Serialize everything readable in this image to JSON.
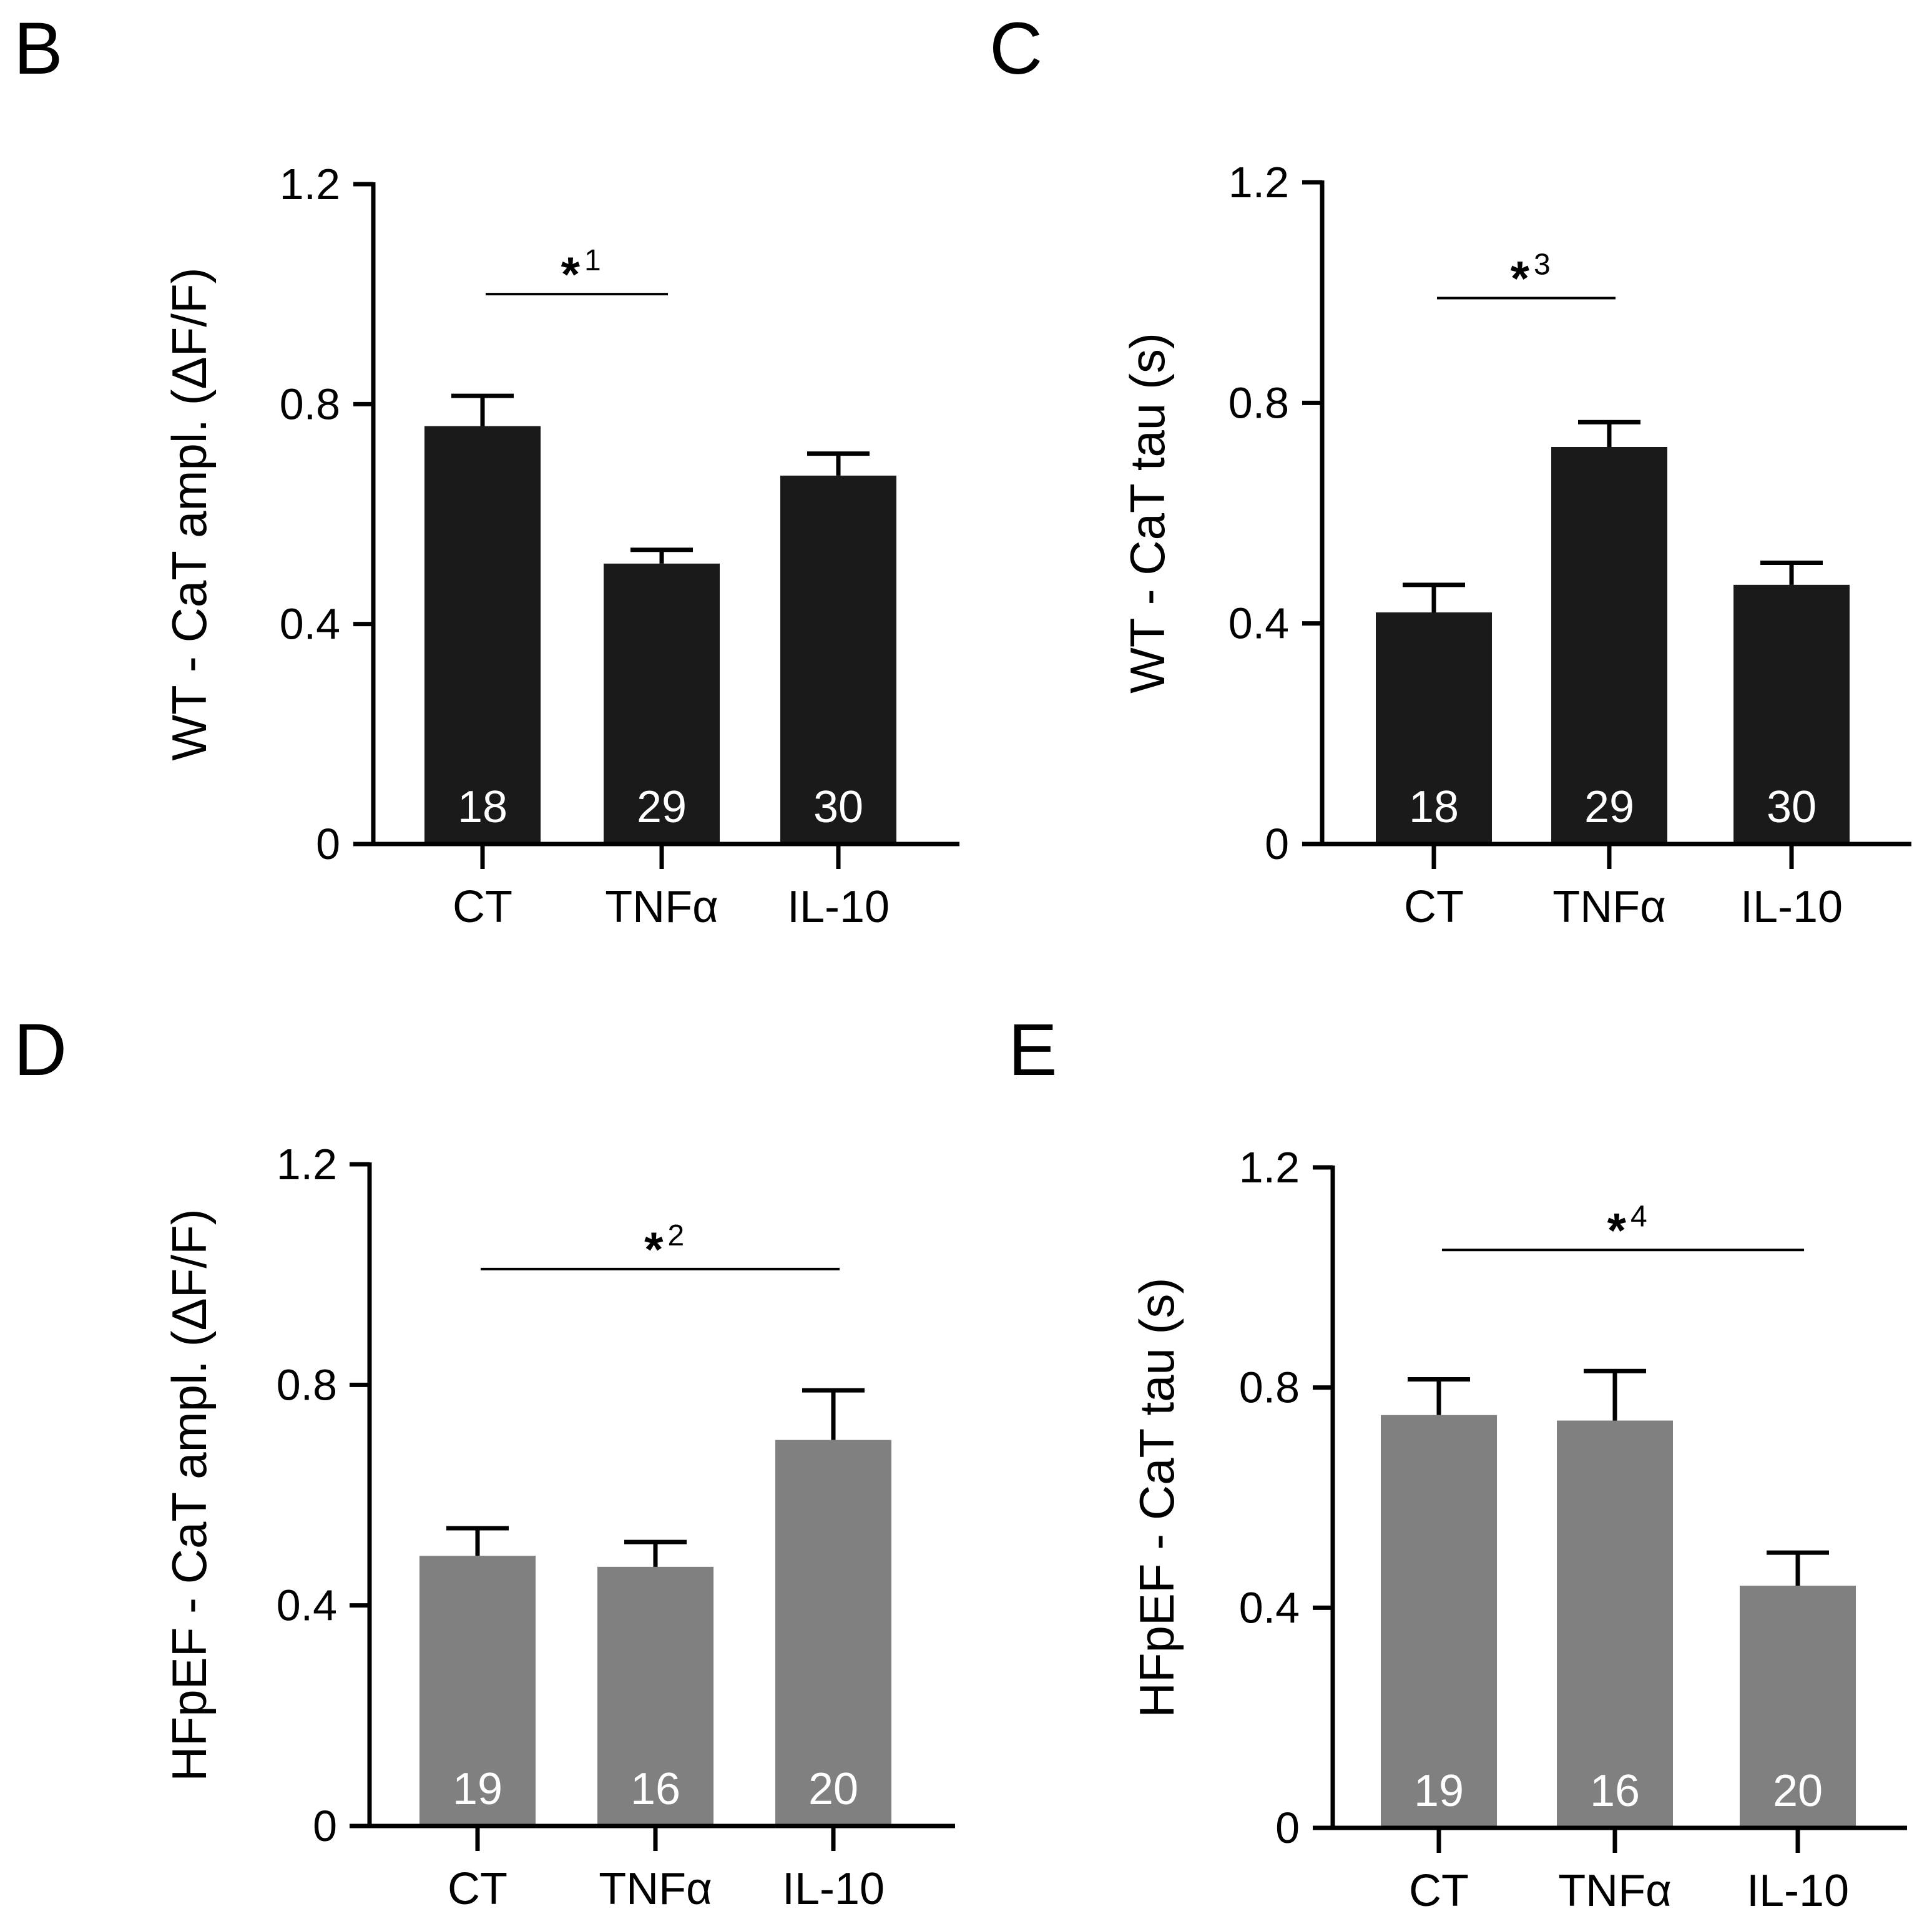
{
  "chart_data": [
    {
      "panel": "B",
      "type": "bar",
      "title": "",
      "ylabel": "WT - CaT ampl. (ΔF/F)",
      "xlabel": "",
      "categories": [
        "CT",
        "TNFα",
        "IL-10"
      ],
      "values": [
        0.76,
        0.51,
        0.67
      ],
      "errors": [
        0.055,
        0.025,
        0.04
      ],
      "n_labels": [
        "18",
        "29",
        "30"
      ],
      "ylim": [
        0,
        1.2
      ],
      "yticks": [
        0,
        0.4,
        0.8,
        1.2
      ],
      "ytick_labels": [
        "0",
        "0.4",
        "0.8",
        "1.2"
      ],
      "bar_color": "#1a1a1a",
      "significance": {
        "from": 0,
        "to": 1,
        "y": 1.0,
        "label": "*",
        "sup": "1"
      }
    },
    {
      "panel": "C",
      "type": "bar",
      "title": "",
      "ylabel": "WT - CaT tau (s)",
      "xlabel": "",
      "categories": [
        "CT",
        "TNFα",
        "IL-10"
      ],
      "values": [
        0.42,
        0.72,
        0.47
      ],
      "errors": [
        0.05,
        0.045,
        0.04
      ],
      "n_labels": [
        "18",
        "29",
        "30"
      ],
      "ylim": [
        0,
        1.2
      ],
      "yticks": [
        0,
        0.4,
        0.8,
        1.2
      ],
      "ytick_labels": [
        "0",
        "0.4",
        "0.8",
        "1.2"
      ],
      "bar_color": "#1a1a1a",
      "significance": {
        "from": 0,
        "to": 1,
        "y": 0.99,
        "label": "*",
        "sup": "3"
      }
    },
    {
      "panel": "D",
      "type": "bar",
      "title": "",
      "ylabel": "HFpEF - CaT ampl. (ΔF/F)",
      "xlabel": "",
      "categories": [
        "CT",
        "TNFα",
        "IL-10"
      ],
      "values": [
        0.49,
        0.47,
        0.7
      ],
      "errors": [
        0.05,
        0.045,
        0.09
      ],
      "n_labels": [
        "19",
        "16",
        "20"
      ],
      "ylim": [
        0,
        1.2
      ],
      "yticks": [
        0,
        0.4,
        0.8,
        1.2
      ],
      "ytick_labels": [
        "0",
        "0.4",
        "0.8",
        "1.2"
      ],
      "bar_color": "#808080",
      "significance": {
        "from": 0,
        "to": 2,
        "y": 1.01,
        "label": "*",
        "sup": "2"
      }
    },
    {
      "panel": "E",
      "type": "bar",
      "title": "",
      "ylabel": "HFpEF - CaT tau (s)",
      "xlabel": "",
      "categories": [
        "CT",
        "TNFα",
        "IL-10"
      ],
      "values": [
        0.75,
        0.74,
        0.44
      ],
      "errors": [
        0.065,
        0.09,
        0.06
      ],
      "n_labels": [
        "19",
        "16",
        "20"
      ],
      "ylim": [
        0,
        1.2
      ],
      "yticks": [
        0,
        0.4,
        0.8,
        1.2
      ],
      "ytick_labels": [
        "0",
        "0.4",
        "0.8",
        "1.2"
      ],
      "bar_color": "#808080",
      "significance": {
        "from": 0,
        "to": 2,
        "y": 1.05,
        "label": "*",
        "sup": "4"
      }
    }
  ]
}
